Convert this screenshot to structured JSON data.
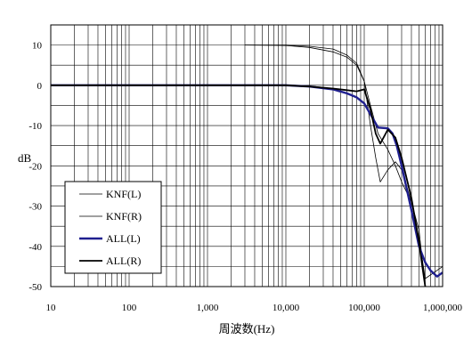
{
  "chart_data": {
    "type": "line",
    "title": "",
    "xlabel": "周波数(Hz)",
    "ylabel": "dB",
    "x_scale": "log",
    "xlim": [
      10,
      1000000
    ],
    "ylim": [
      -50,
      15
    ],
    "grid": true,
    "legend_position": "lower-left",
    "x_ticks": [
      10,
      100,
      1000,
      10000,
      100000,
      1000000
    ],
    "x_tick_labels": [
      "10",
      "100",
      "1,000",
      "10,000",
      "100,000",
      "1,000,000"
    ],
    "y_ticks": [
      10,
      0,
      -10,
      -20,
      -30,
      -40,
      -50
    ],
    "y_tick_labels": [
      "10",
      "0",
      "-10",
      "-20",
      "-30",
      "-40",
      "-50"
    ],
    "series": [
      {
        "name": "KNF(L)",
        "color": "#000000",
        "width": 0.8,
        "x": [
          3000,
          10000,
          20000,
          40000,
          60000,
          80000,
          100000,
          120000,
          150000,
          200000,
          250000,
          300000,
          400000,
          500000,
          600000
        ],
        "y": [
          10,
          9.9,
          9.4,
          8.3,
          7.0,
          5.0,
          1.0,
          -5.0,
          -12.0,
          -16.0,
          -20.0,
          -24.0,
          -29.0,
          -36.0,
          -50.0
        ]
      },
      {
        "name": "KNF(R)",
        "color": "#000000",
        "width": 0.8,
        "x": [
          3000,
          10000,
          20000,
          40000,
          60000,
          80000,
          100000,
          120000,
          140000,
          160000,
          200000,
          250000,
          300000,
          400000,
          500000,
          600000,
          1000000
        ],
        "y": [
          10,
          10,
          9.7,
          9.0,
          7.5,
          5.5,
          1.0,
          -10.0,
          -18.0,
          -24.0,
          -21.0,
          -19.0,
          -21.0,
          -29.0,
          -38.0,
          -48.0,
          -45.0
        ]
      },
      {
        "name": "ALL(L)",
        "color": "#1f1f8f",
        "width": 2.4,
        "x": [
          10,
          10000,
          20000,
          40000,
          60000,
          80000,
          100000,
          150000,
          200000,
          230000,
          260000,
          300000,
          400000,
          500000,
          600000,
          700000,
          850000,
          1000000
        ],
        "y": [
          0,
          0,
          -0.3,
          -1.0,
          -2.0,
          -3.0,
          -4.5,
          -10.5,
          -10.7,
          -12.0,
          -15.0,
          -20.0,
          -31.0,
          -40.0,
          -44.0,
          -46.0,
          -47.5,
          -46.5
        ]
      },
      {
        "name": "ALL(R)",
        "color": "#000000",
        "width": 1.8,
        "x": [
          10,
          10000,
          20000,
          40000,
          60000,
          80000,
          100000,
          120000,
          140000,
          160000,
          200000,
          250000,
          300000,
          400000,
          500000,
          550000,
          600000
        ],
        "y": [
          0,
          0,
          -0.3,
          -0.8,
          -1.2,
          -1.5,
          -1.0,
          -6.0,
          -12.0,
          -14.5,
          -11.0,
          -13.0,
          -18.0,
          -28.0,
          -39.0,
          -45.0,
          -50.0
        ]
      }
    ]
  }
}
